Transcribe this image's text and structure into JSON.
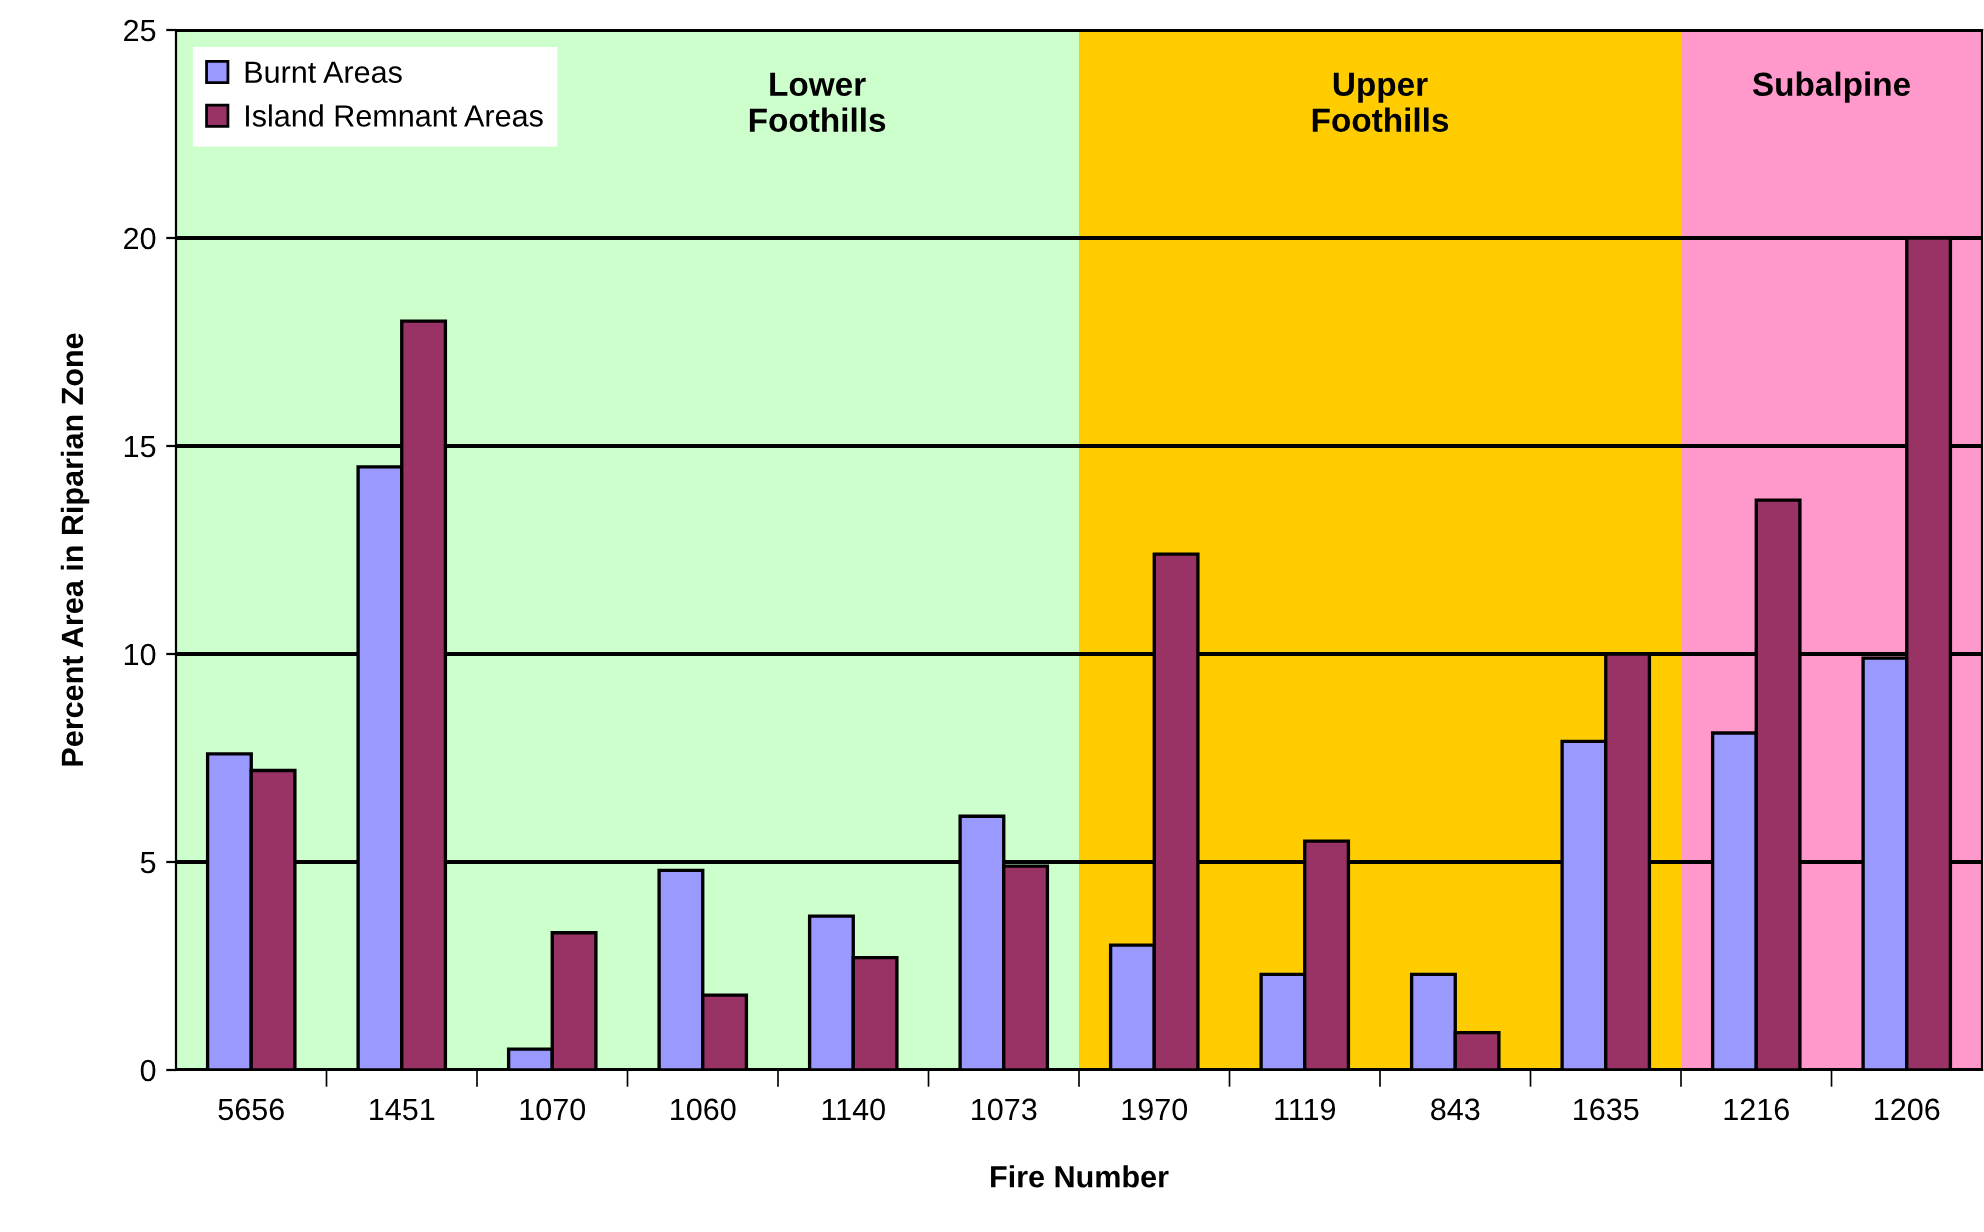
{
  "chart_data": {
    "type": "bar",
    "xlabel": "Fire Number",
    "ylabel": "Percent Area in Riparian Zone",
    "categories": [
      "5656",
      "1451",
      "1070",
      "1060",
      "1140",
      "1073",
      "1970",
      "1119",
      "843",
      "1635",
      "1216",
      "1206"
    ],
    "series": [
      {
        "name": "Burnt Areas",
        "color": "#9999ff",
        "values": [
          7.6,
          14.5,
          0.5,
          4.8,
          3.7,
          6.1,
          3.0,
          2.3,
          2.3,
          7.9,
          8.1,
          9.9
        ]
      },
      {
        "name": "Island Remnant Areas",
        "color": "#993366",
        "values": [
          7.2,
          18.0,
          3.3,
          1.8,
          2.7,
          4.9,
          12.4,
          5.5,
          0.9,
          10.0,
          13.7,
          20.0
        ]
      }
    ],
    "ylim": [
      0,
      25
    ],
    "yticks": [
      0,
      5,
      10,
      15,
      20,
      25
    ],
    "grid": "y",
    "legend": "top left",
    "bands": [
      {
        "axis": "x",
        "from": "5656",
        "to": "1073",
        "label": "Lower\nFoothills",
        "color": "#ccffcc"
      },
      {
        "axis": "x",
        "from": "1970",
        "to": "1635",
        "label": "Upper\nFoothills",
        "color": "#ffcc00"
      },
      {
        "axis": "x",
        "from": "1216",
        "to": "1206",
        "label": "Subalpine",
        "color": "#ff99cc"
      }
    ]
  }
}
